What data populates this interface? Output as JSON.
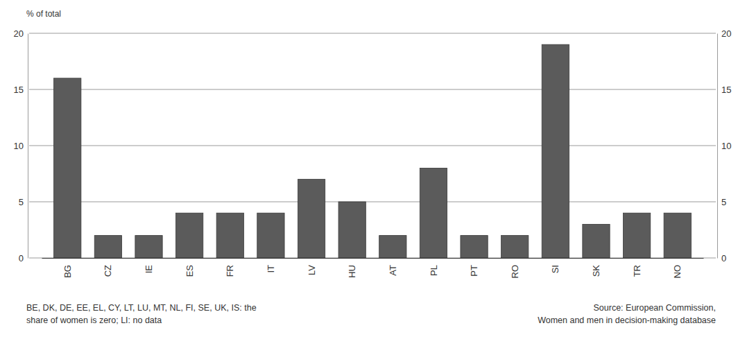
{
  "chart_data": {
    "type": "bar",
    "y_label": "% of total",
    "categories": [
      "BG",
      "CZ",
      "IE",
      "ES",
      "FR",
      "IT",
      "LV",
      "HU",
      "AT",
      "PL",
      "PT",
      "RO",
      "SI",
      "SK",
      "TR",
      "NO"
    ],
    "values": [
      16,
      2,
      2,
      4,
      4,
      4,
      7,
      5,
      2,
      8,
      2,
      2,
      19,
      3,
      4,
      4
    ],
    "color": "#5b5b5b",
    "ylim": [
      0,
      20
    ],
    "yticks": [
      0,
      5,
      10,
      15,
      20
    ],
    "grid": true,
    "note": [
      "BE, DK, DE, EE, EL, CY, LT, LU, MT, NL, FI, SE, UK, IS: the",
      "share of women is zero; LI: no data"
    ],
    "source": [
      "Source: European Commission,",
      "Women and men in decision-making database"
    ]
  }
}
